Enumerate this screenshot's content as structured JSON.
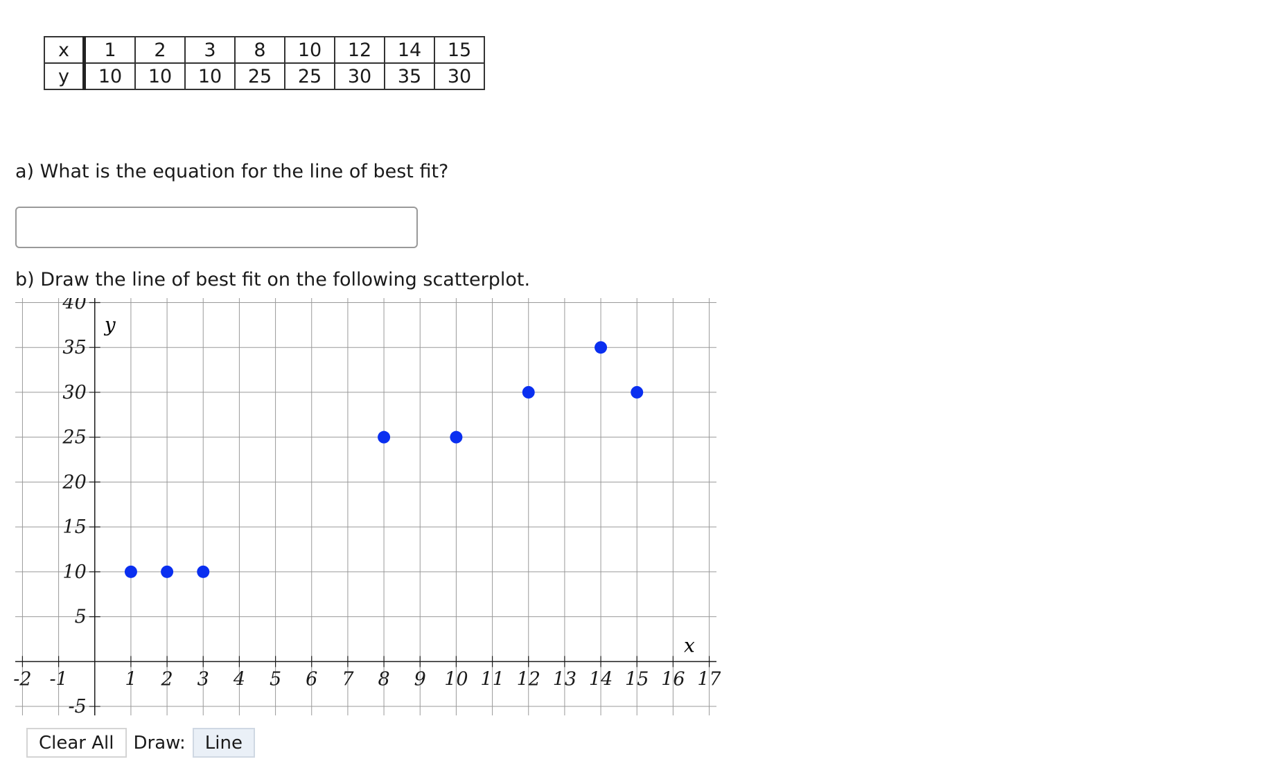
{
  "data_table": {
    "x_label": "x",
    "y_label": "y",
    "x_values": [
      "1",
      "2",
      "3",
      "8",
      "10",
      "12",
      "14",
      "15"
    ],
    "y_values": [
      "10",
      "10",
      "10",
      "25",
      "25",
      "30",
      "35",
      "30"
    ]
  },
  "question_a": {
    "text": "a) What is the equation for the line of best fit?",
    "answer_value": "",
    "placeholder": ""
  },
  "question_b": {
    "text": "b) Draw the line of best fit on the following scatterplot."
  },
  "toolbar": {
    "clear_label": "Clear All",
    "draw_label": "Draw:",
    "tool_label": "Line"
  },
  "colors": {
    "point": "#0a2ff0",
    "grid": "#999999",
    "axis": "#1a1a1a"
  },
  "chart_data": {
    "type": "scatter",
    "xlabel": "x",
    "ylabel": "y",
    "xlim": [
      -2.2,
      17.2
    ],
    "ylim": [
      -6,
      40.5
    ],
    "grid": true,
    "x_ticks": [
      -2,
      -1,
      1,
      2,
      3,
      4,
      5,
      6,
      7,
      8,
      9,
      10,
      11,
      12,
      13,
      14,
      15,
      16,
      17
    ],
    "y_ticks": [
      -5,
      5,
      10,
      15,
      20,
      25,
      30,
      35,
      40
    ],
    "points": [
      {
        "x": 1,
        "y": 10
      },
      {
        "x": 2,
        "y": 10
      },
      {
        "x": 3,
        "y": 10
      },
      {
        "x": 8,
        "y": 25
      },
      {
        "x": 10,
        "y": 25
      },
      {
        "x": 12,
        "y": 30
      },
      {
        "x": 14,
        "y": 35
      },
      {
        "x": 15,
        "y": 30
      }
    ]
  }
}
